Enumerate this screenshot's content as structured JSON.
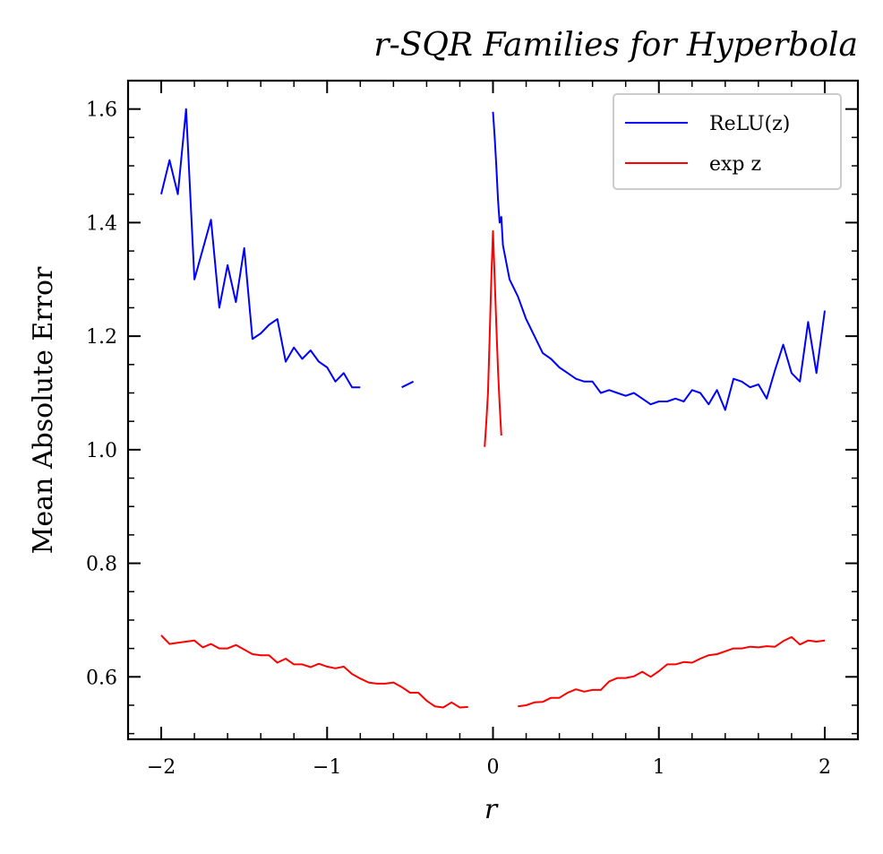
{
  "chart_data": {
    "type": "line",
    "title": "r-SQR Families for Hyperbola",
    "xlabel": "r",
    "ylabel": "Mean Absolute Error",
    "xlim": [
      -2.2,
      2.2
    ],
    "ylim": [
      0.49,
      1.65
    ],
    "xticks": [
      -2,
      -1,
      0,
      1,
      2
    ],
    "xtick_labels": [
      "−2",
      "−1",
      "0",
      "1",
      "2"
    ],
    "yticks": [
      0.6,
      0.8,
      1.0,
      1.2,
      1.4,
      1.6
    ],
    "ytick_labels": [
      "0.6",
      "0.8",
      "1.0",
      "1.2",
      "1.4",
      "1.6"
    ],
    "grid": false,
    "legend_position": "top-right",
    "series": [
      {
        "name": "ReLU(z)",
        "color": "#0000ff",
        "segments": [
          [
            [
              -2.0,
              1.45
            ],
            [
              -1.95,
              1.51
            ],
            [
              -1.9,
              1.45
            ],
            [
              -1.85,
              1.6
            ],
            [
              -1.8,
              1.3
            ],
            [
              -1.7,
              1.405
            ],
            [
              -1.65,
              1.25
            ],
            [
              -1.6,
              1.325
            ],
            [
              -1.55,
              1.26
            ],
            [
              -1.5,
              1.355
            ],
            [
              -1.45,
              1.195
            ],
            [
              -1.4,
              1.205
            ],
            [
              -1.35,
              1.22
            ],
            [
              -1.3,
              1.23
            ],
            [
              -1.25,
              1.155
            ],
            [
              -1.2,
              1.18
            ],
            [
              -1.15,
              1.16
            ],
            [
              -1.1,
              1.175
            ],
            [
              -1.05,
              1.155
            ],
            [
              -1.0,
              1.145
            ],
            [
              -0.95,
              1.12
            ],
            [
              -0.9,
              1.135
            ],
            [
              -0.85,
              1.11
            ],
            [
              -0.8,
              1.11
            ]
          ],
          [
            [
              -0.55,
              1.11
            ],
            [
              -0.48,
              1.12
            ]
          ],
          [
            [
              0.0,
              1.595
            ],
            [
              0.01,
              1.55
            ],
            [
              0.02,
              1.5
            ],
            [
              0.03,
              1.44
            ],
            [
              0.04,
              1.4
            ],
            [
              0.05,
              1.41
            ],
            [
              0.06,
              1.36
            ],
            [
              0.1,
              1.3
            ],
            [
              0.15,
              1.27
            ],
            [
              0.2,
              1.23
            ],
            [
              0.25,
              1.2
            ],
            [
              0.3,
              1.17
            ],
            [
              0.35,
              1.16
            ],
            [
              0.4,
              1.145
            ],
            [
              0.45,
              1.135
            ],
            [
              0.5,
              1.125
            ],
            [
              0.55,
              1.12
            ],
            [
              0.6,
              1.12
            ],
            [
              0.65,
              1.1
            ],
            [
              0.7,
              1.105
            ],
            [
              0.75,
              1.1
            ],
            [
              0.8,
              1.095
            ],
            [
              0.85,
              1.1
            ],
            [
              0.9,
              1.09
            ],
            [
              0.95,
              1.08
            ],
            [
              1.0,
              1.085
            ],
            [
              1.05,
              1.085
            ],
            [
              1.1,
              1.09
            ],
            [
              1.15,
              1.085
            ],
            [
              1.2,
              1.105
            ],
            [
              1.25,
              1.1
            ],
            [
              1.3,
              1.08
            ],
            [
              1.35,
              1.105
            ],
            [
              1.4,
              1.07
            ],
            [
              1.45,
              1.125
            ],
            [
              1.5,
              1.12
            ],
            [
              1.55,
              1.11
            ],
            [
              1.6,
              1.115
            ],
            [
              1.65,
              1.09
            ],
            [
              1.7,
              1.14
            ],
            [
              1.75,
              1.185
            ],
            [
              1.8,
              1.135
            ],
            [
              1.85,
              1.12
            ],
            [
              1.9,
              1.225
            ],
            [
              1.95,
              1.135
            ],
            [
              2.0,
              1.245
            ]
          ]
        ]
      },
      {
        "name": "exp z",
        "color": "#ff0000",
        "segments": [
          [
            [
              -2.0,
              0.673
            ],
            [
              -1.95,
              0.658
            ],
            [
              -1.9,
              0.66
            ],
            [
              -1.85,
              0.662
            ],
            [
              -1.8,
              0.664
            ],
            [
              -1.75,
              0.652
            ],
            [
              -1.7,
              0.658
            ],
            [
              -1.65,
              0.65
            ],
            [
              -1.6,
              0.65
            ],
            [
              -1.55,
              0.656
            ],
            [
              -1.5,
              0.648
            ],
            [
              -1.45,
              0.64
            ],
            [
              -1.4,
              0.638
            ],
            [
              -1.35,
              0.638
            ],
            [
              -1.3,
              0.625
            ],
            [
              -1.25,
              0.632
            ],
            [
              -1.2,
              0.622
            ],
            [
              -1.15,
              0.622
            ],
            [
              -1.1,
              0.617
            ],
            [
              -1.05,
              0.623
            ],
            [
              -1.0,
              0.618
            ],
            [
              -0.95,
              0.615
            ],
            [
              -0.9,
              0.618
            ],
            [
              -0.85,
              0.605
            ],
            [
              -0.8,
              0.597
            ],
            [
              -0.75,
              0.59
            ],
            [
              -0.7,
              0.588
            ],
            [
              -0.65,
              0.588
            ],
            [
              -0.6,
              0.59
            ],
            [
              -0.55,
              0.582
            ],
            [
              -0.5,
              0.572
            ],
            [
              -0.45,
              0.572
            ],
            [
              -0.4,
              0.558
            ],
            [
              -0.35,
              0.548
            ],
            [
              -0.3,
              0.546
            ],
            [
              -0.25,
              0.555
            ],
            [
              -0.2,
              0.546
            ],
            [
              -0.15,
              0.547
            ]
          ],
          [
            [
              -0.05,
              1.005
            ],
            [
              -0.04,
              1.05
            ],
            [
              -0.03,
              1.1
            ],
            [
              -0.02,
              1.2
            ],
            [
              -0.01,
              1.3
            ],
            [
              0.0,
              1.385
            ],
            [
              0.01,
              1.3
            ],
            [
              0.02,
              1.22
            ],
            [
              0.03,
              1.14
            ],
            [
              0.04,
              1.08
            ],
            [
              0.05,
              1.025
            ]
          ],
          [
            [
              0.15,
              0.548
            ],
            [
              0.2,
              0.55
            ],
            [
              0.25,
              0.555
            ],
            [
              0.3,
              0.556
            ],
            [
              0.35,
              0.563
            ],
            [
              0.4,
              0.563
            ],
            [
              0.45,
              0.572
            ],
            [
              0.5,
              0.578
            ],
            [
              0.55,
              0.574
            ],
            [
              0.6,
              0.577
            ],
            [
              0.65,
              0.577
            ],
            [
              0.7,
              0.592
            ],
            [
              0.75,
              0.598
            ],
            [
              0.8,
              0.598
            ],
            [
              0.85,
              0.601
            ],
            [
              0.9,
              0.609
            ],
            [
              0.95,
              0.6
            ],
            [
              1.0,
              0.61
            ],
            [
              1.05,
              0.622
            ],
            [
              1.1,
              0.622
            ],
            [
              1.15,
              0.626
            ],
            [
              1.2,
              0.625
            ],
            [
              1.25,
              0.632
            ],
            [
              1.3,
              0.638
            ],
            [
              1.35,
              0.64
            ],
            [
              1.4,
              0.645
            ],
            [
              1.45,
              0.65
            ],
            [
              1.5,
              0.65
            ],
            [
              1.55,
              0.653
            ],
            [
              1.6,
              0.652
            ],
            [
              1.65,
              0.654
            ],
            [
              1.7,
              0.653
            ],
            [
              1.75,
              0.663
            ],
            [
              1.8,
              0.67
            ],
            [
              1.85,
              0.657
            ],
            [
              1.9,
              0.664
            ],
            [
              1.95,
              0.662
            ],
            [
              2.0,
              0.664
            ]
          ]
        ]
      }
    ]
  },
  "legend": {
    "items": [
      {
        "label": "ReLU(z)",
        "color": "#0000ff"
      },
      {
        "label": "exp z",
        "color": "#ff0000"
      }
    ]
  }
}
